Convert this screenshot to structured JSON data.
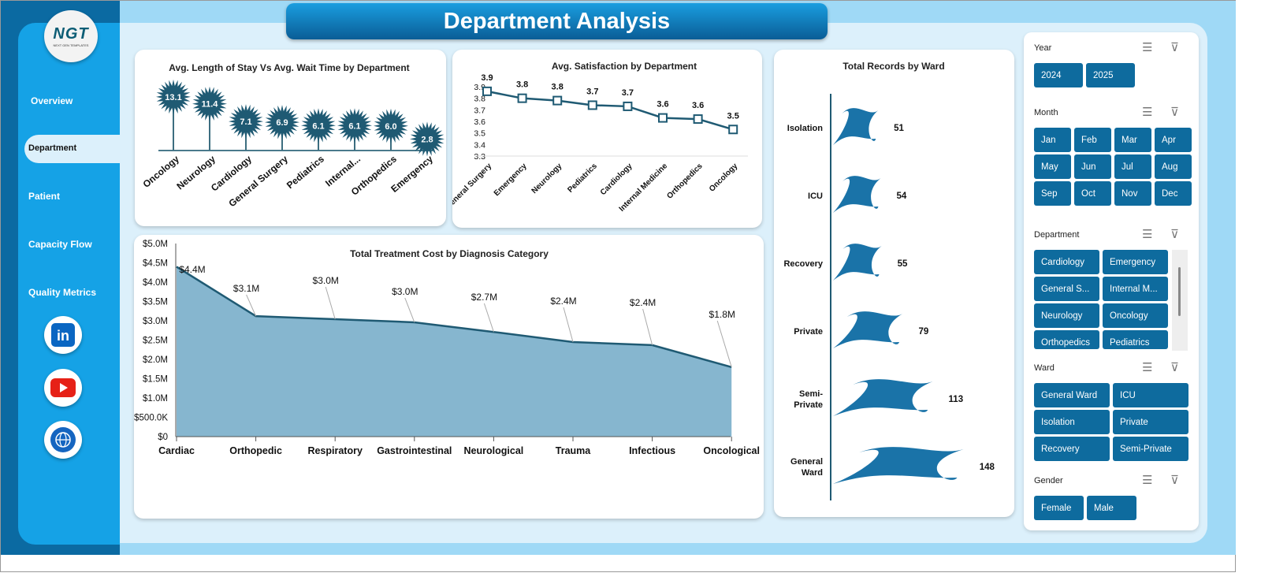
{
  "header": {
    "title": "Department Analysis"
  },
  "logo": {
    "text": "NGT",
    "subtitle": "NEXT GEN TEMPLATES"
  },
  "sidebar": {
    "items": [
      {
        "label": "Overview"
      },
      {
        "label": "Department"
      },
      {
        "label": "Patient"
      },
      {
        "label": "Capacity Flow"
      },
      {
        "label": "Quality Metrics"
      }
    ]
  },
  "social": [
    "linkedin-icon",
    "youtube-icon",
    "globe-icon"
  ],
  "colors": {
    "navy": "#1f5a73",
    "area": "#86b6cf",
    "button": "#0e6b9e",
    "sidebar": "#15a2e6"
  },
  "chart_data": [
    {
      "type": "bar",
      "title": "Avg. Length of Stay Vs Avg. Wait Time by Department",
      "categories": [
        "Oncology",
        "Neurology",
        "Cardiology",
        "General Surgery",
        "Pediatrics",
        "Internal...",
        "Orthopedics",
        "Emergency"
      ],
      "values": [
        13.1,
        11.4,
        7.1,
        6.9,
        6.1,
        6.1,
        6.0,
        2.8
      ],
      "labels": [
        "13.1",
        "11.4",
        "7.1",
        "6.9",
        "6.1",
        "6.1",
        "6.0",
        "2.8"
      ]
    },
    {
      "type": "line",
      "title": "Avg. Satisfaction by Department",
      "categories": [
        "General Surgery",
        "Emergency",
        "Neurology",
        "Pediatrics",
        "Cardiology",
        "Internal Medicine",
        "Orthopedics",
        "Oncology"
      ],
      "values": [
        3.86,
        3.8,
        3.78,
        3.74,
        3.73,
        3.63,
        3.62,
        3.53
      ],
      "labels": [
        "3.9",
        "3.8",
        "3.8",
        "3.7",
        "3.7",
        "3.6",
        "3.6",
        "3.5"
      ],
      "yticks": [
        "3.9",
        "3.8",
        "3.7",
        "3.6",
        "3.5",
        "3.4",
        "3.3"
      ],
      "ylim": [
        3.3,
        3.9
      ]
    },
    {
      "type": "area",
      "title": "Total Treatment Cost by Diagnosis  Category",
      "categories": [
        "Cardiac",
        "Orthopedic",
        "Respiratory",
        "Gastrointestinal",
        "Neurological",
        "Trauma",
        "Infectious",
        "Oncological"
      ],
      "values": [
        4.4,
        3.12,
        3.04,
        2.96,
        2.71,
        2.45,
        2.37,
        1.8
      ],
      "labels": [
        "$4.4M",
        "$3.1M",
        "$3.0M",
        "$3.0M",
        "$2.7M",
        "$2.4M",
        "$2.4M",
        "$1.8M"
      ],
      "yticks": [
        "$0",
        "$500.0K",
        "$1.0M",
        "$1.5M",
        "$2.0M",
        "$2.5M",
        "$3.0M",
        "$3.5M",
        "$4.0M",
        "$4.5M",
        "$5.0M"
      ],
      "ylim": [
        0,
        5
      ]
    },
    {
      "type": "bar",
      "title": "Total Records by Ward",
      "categories": [
        "Isolation",
        "ICU",
        "Recovery",
        "Private",
        "Semi-\nPrivate",
        "General\nWard"
      ],
      "values": [
        51,
        54,
        55,
        79,
        113,
        148
      ],
      "labels": [
        "51",
        "54",
        "55",
        "79",
        "113",
        "148"
      ]
    }
  ],
  "slicers": [
    {
      "title": "Year",
      "items": [
        "2024",
        "2025"
      ]
    },
    {
      "title": "Month",
      "items": [
        "Jan",
        "Feb",
        "Mar",
        "Apr",
        "May",
        "Jun",
        "Jul",
        "Aug",
        "Sep",
        "Oct",
        "Nov",
        "Dec"
      ]
    },
    {
      "title": "Department",
      "items": [
        "Cardiology",
        "Emergency",
        "General S...",
        "Internal M...",
        "Neurology",
        "Oncology",
        "Orthopedics",
        "Pediatrics"
      ]
    },
    {
      "title": "Ward",
      "items": [
        "General Ward",
        "ICU",
        "Isolation",
        "Private",
        "Recovery",
        "Semi-Private"
      ]
    },
    {
      "title": "Gender",
      "items": [
        "Female",
        "Male"
      ]
    }
  ]
}
